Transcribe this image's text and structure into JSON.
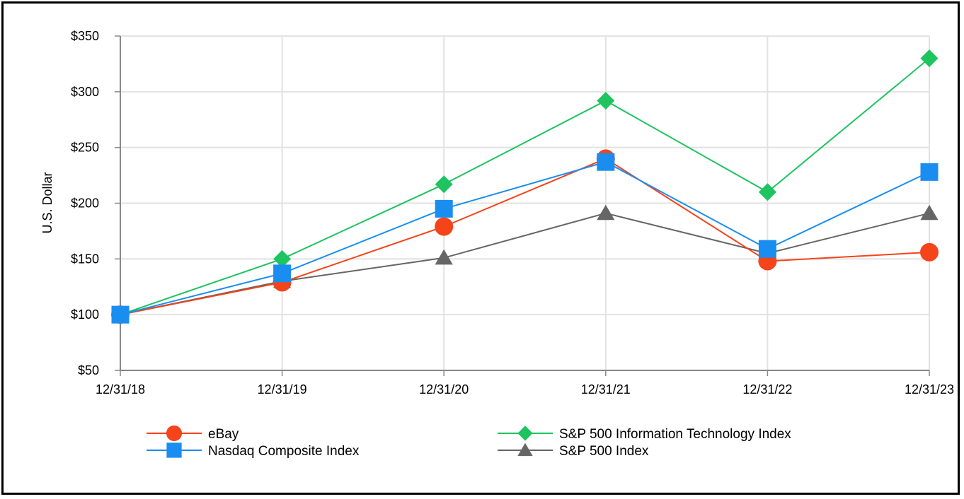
{
  "chart_data": {
    "type": "line",
    "title": "",
    "xlabel": "",
    "ylabel": "U.S. Dollar",
    "categories": [
      "12/31/18",
      "12/31/19",
      "12/31/20",
      "12/31/21",
      "12/31/22",
      "12/31/23"
    ],
    "ylim": [
      50,
      350
    ],
    "yticks": [
      50,
      100,
      150,
      200,
      250,
      300,
      350
    ],
    "ytick_labels": [
      "$50",
      "$100",
      "$150",
      "$200",
      "$250",
      "$300",
      "$350"
    ],
    "grid": true,
    "legend_position": "bottom",
    "series": [
      {
        "name": "eBay",
        "color": "#F5431A",
        "marker": "circle",
        "values": [
          100,
          129,
          179,
          240,
          148,
          156
        ]
      },
      {
        "name": "S&P 500 Information Technology Index",
        "color": "#1DC45F",
        "marker": "diamond",
        "values": [
          100,
          150,
          217,
          292,
          210,
          330
        ]
      },
      {
        "name": "Nasdaq Composite Index",
        "color": "#1A8EF0",
        "marker": "square",
        "values": [
          100,
          137,
          195,
          237,
          159,
          228
        ]
      },
      {
        "name": "S&P 500 Index",
        "color": "#666666",
        "marker": "triangle",
        "values": [
          100,
          130,
          151,
          191,
          155,
          191
        ]
      }
    ]
  }
}
